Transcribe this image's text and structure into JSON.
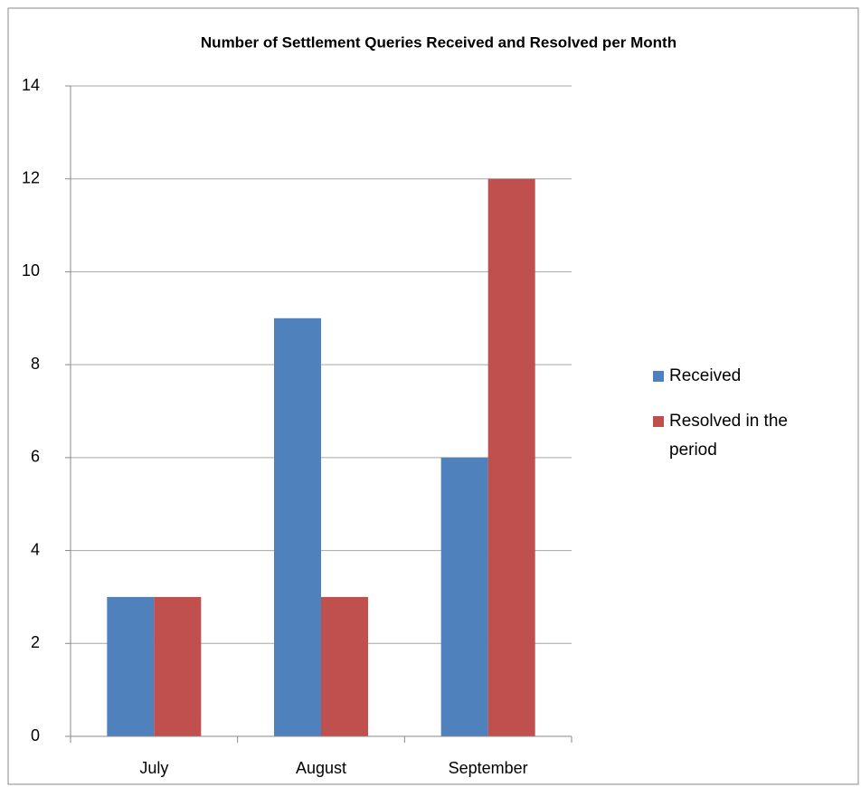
{
  "chart_data": {
    "type": "bar",
    "title": "Number of Settlement Queries Received and Resolved per Month",
    "categories": [
      "July",
      "August",
      "September"
    ],
    "series": [
      {
        "name": "Received",
        "color": "#4f81bd",
        "values": [
          3,
          9,
          6
        ]
      },
      {
        "name": "Resolved in the period",
        "color": "#c0504d",
        "values": [
          3,
          3,
          12
        ]
      }
    ],
    "ylim": [
      0,
      14
    ],
    "yticks": [
      0,
      2,
      4,
      6,
      8,
      10,
      12,
      14
    ],
    "grid": true,
    "legend": "right"
  }
}
